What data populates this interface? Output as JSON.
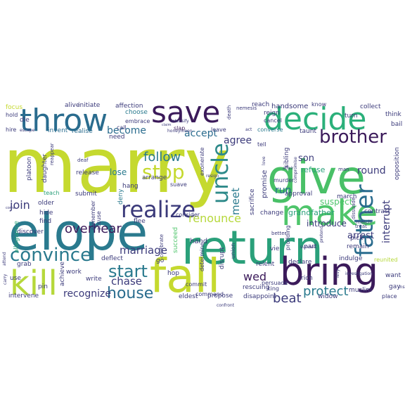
{
  "words": [
    {
      "text": "marry",
      "color": "#c5d92f"
    },
    {
      "text": "elope",
      "color": "#2a7a8e"
    },
    {
      "text": "return",
      "color": "#2aa07a"
    },
    {
      "text": "give",
      "color": "#49c067"
    },
    {
      "text": "fall",
      "color": "#c5d92f"
    },
    {
      "text": "bring",
      "color": "#3b1a5a"
    },
    {
      "text": "kill",
      "color": "#b6d83b"
    },
    {
      "text": "make",
      "color": "#4fc56b"
    },
    {
      "text": "decide",
      "color": "#2bb07a"
    },
    {
      "text": "throw",
      "color": "#2a6c8e"
    },
    {
      "text": "save",
      "color": "#3b1a5a"
    },
    {
      "text": "convince",
      "color": "#2a7a8e"
    },
    {
      "text": "realize",
      "color": "#3b3a7a"
    },
    {
      "text": "brother",
      "color": "#3b1a5a"
    },
    {
      "text": "uncle",
      "color": "#2e8a8a"
    },
    {
      "text": "father",
      "color": "#2a6c8e"
    },
    {
      "text": "stop",
      "color": "#c5d92f"
    },
    {
      "text": "start",
      "color": "#2a7a8e"
    },
    {
      "text": "house",
      "color": "#2a6c8e"
    },
    {
      "text": "overhear",
      "color": "#3b1a5a"
    },
    {
      "text": "follow",
      "color": "#2a7a8e"
    },
    {
      "text": "marriage",
      "color": "#3b3a7a"
    },
    {
      "text": "protect",
      "color": "#2a7a8e"
    },
    {
      "text": "join",
      "color": "#3b3a7a"
    },
    {
      "text": "accept",
      "color": "#2a6c8e"
    },
    {
      "text": "become",
      "color": "#2a6c8e"
    },
    {
      "text": "agree",
      "color": "#3b3a7a"
    },
    {
      "text": "renounce",
      "color": "#b6d83b"
    },
    {
      "text": "meet",
      "color": "#2a7a8e"
    },
    {
      "text": "run",
      "color": "#2a6c8e"
    },
    {
      "text": "beat",
      "color": "#3b3a7a"
    },
    {
      "text": "chase",
      "color": "#3b3a7a"
    },
    {
      "text": "wed",
      "color": "#3b1a5a"
    },
    {
      "text": "son",
      "color": "#3b3a7a"
    },
    {
      "text": "round",
      "color": "#3b3a7a"
    },
    {
      "text": "interrupt",
      "color": "#3b3a7a"
    },
    {
      "text": "recognize",
      "color": "#3b3a7a"
    },
    {
      "text": "arrest",
      "color": "#3b3a7a"
    },
    {
      "text": "lose",
      "color": "#2a7a8e"
    },
    {
      "text": "introduce",
      "color": "#3b3a7a"
    },
    {
      "text": "grandfather",
      "color": "#2aa07a"
    },
    {
      "text": "suspect",
      "color": "#4fc56b"
    },
    {
      "text": "refuse",
      "color": "#2aa07a"
    },
    {
      "text": "sacrifice",
      "color": "#3b3a7a"
    },
    {
      "text": "promise",
      "color": "#3b3a7a"
    },
    {
      "text": "hand",
      "color": "#3b3a7a"
    },
    {
      "text": "handsome",
      "color": "#3b3a7a"
    },
    {
      "text": "reach",
      "color": "#3b3a7a"
    },
    {
      "text": "choose",
      "color": "#2a7a8e"
    },
    {
      "text": "affection",
      "color": "#3b3a7a"
    },
    {
      "text": "alive",
      "color": "#3b3a7a"
    },
    {
      "text": "initiate",
      "color": "#3b3a7a"
    },
    {
      "text": "focus",
      "color": "#c5d92f"
    },
    {
      "text": "collect",
      "color": "#3b3a7a"
    },
    {
      "text": "think",
      "color": "#3b3a7a"
    },
    {
      "text": "bail",
      "color": "#3b3a7a"
    },
    {
      "text": "turn",
      "color": "#3b3a7a"
    },
    {
      "text": "know",
      "color": "#3b3a7a"
    },
    {
      "text": "hold",
      "color": "#3b3a7a"
    },
    {
      "text": "hire",
      "color": "#3b3a7a"
    },
    {
      "text": "escape",
      "color": "#3b3a7a"
    },
    {
      "text": "invent",
      "color": "#2a6c8e"
    },
    {
      "text": "realise",
      "color": "#2a6c8e"
    },
    {
      "text": "embrace",
      "color": "#3b3a7a"
    },
    {
      "text": "call",
      "color": "#3b3a7a"
    },
    {
      "text": "slap",
      "color": "#3b1a5a"
    },
    {
      "text": "leave",
      "color": "#3b3a7a"
    },
    {
      "text": "reign",
      "color": "#3b3a7a"
    },
    {
      "text": "cancel",
      "color": "#3b3a7a"
    },
    {
      "text": "taunt",
      "color": "#3b3a7a"
    },
    {
      "text": "converse",
      "color": "#2a7a8e"
    },
    {
      "text": "tell",
      "color": "#3b3a7a"
    },
    {
      "text": "release",
      "color": "#3b3a7a"
    },
    {
      "text": "hang",
      "color": "#3b3a7a"
    },
    {
      "text": "arrange",
      "color": "#3b3a7a"
    },
    {
      "text": "platoon",
      "color": "#3b3a7a"
    },
    {
      "text": "daughter",
      "color": "#3b3a7a"
    },
    {
      "text": "teach",
      "color": "#2aa07a"
    },
    {
      "text": "submit",
      "color": "#3b3a7a"
    },
    {
      "text": "deny",
      "color": "#2a7a8e"
    },
    {
      "text": "suave",
      "color": "#3b3a7a"
    },
    {
      "text": "exonerate",
      "color": "#3b3a7a"
    },
    {
      "text": "murder",
      "color": "#3b3a7a"
    },
    {
      "text": "approval",
      "color": "#3b3a7a"
    },
    {
      "text": "march",
      "color": "#3b3a7a"
    },
    {
      "text": "contrast",
      "color": "#3b3a7a"
    },
    {
      "text": "opposition",
      "color": "#3b3a7a"
    },
    {
      "text": "older",
      "color": "#3b3a7a"
    },
    {
      "text": "hide",
      "color": "#3b3a7a"
    },
    {
      "text": "find",
      "color": "#3b3a7a"
    },
    {
      "text": "discover",
      "color": "#3b3a7a"
    },
    {
      "text": "flee",
      "color": "#3b3a7a"
    },
    {
      "text": "consider",
      "color": "#3b3a7a"
    },
    {
      "text": "change",
      "color": "#3b3a7a"
    },
    {
      "text": "allegiance",
      "color": "#2aa07a"
    },
    {
      "text": "remember",
      "color": "#3b3a7a"
    },
    {
      "text": "celebrate",
      "color": "#3b3a7a"
    },
    {
      "text": "succeed",
      "color": "#4fc56b"
    },
    {
      "text": "commit",
      "color": "#3b3a7a"
    },
    {
      "text": "command",
      "color": "#3b3a7a"
    },
    {
      "text": "union",
      "color": "#3b3a7a"
    },
    {
      "text": "vie",
      "color": "#3b3a7a"
    },
    {
      "text": "prodding",
      "color": "#3b3a7a"
    },
    {
      "text": "remain",
      "color": "#3b3a7a"
    },
    {
      "text": "reunited",
      "color": "#b6d83b"
    },
    {
      "text": "pick",
      "color": "#3b3a7a"
    },
    {
      "text": "treat",
      "color": "#3b3a7a"
    },
    {
      "text": "match",
      "color": "#3b3a7a"
    },
    {
      "text": "grab",
      "color": "#3b3a7a"
    },
    {
      "text": "work",
      "color": "#3b3a7a"
    },
    {
      "text": "deflect",
      "color": "#3b3a7a"
    },
    {
      "text": "go",
      "color": "#3b3a7a"
    },
    {
      "text": "hop",
      "color": "#3b3a7a"
    },
    {
      "text": "determine",
      "color": "#3b3a7a"
    },
    {
      "text": "disrupt",
      "color": "#3b3a7a"
    },
    {
      "text": "relent",
      "color": "#3b3a7a"
    },
    {
      "text": "declare",
      "color": "#3b3a7a"
    },
    {
      "text": "rich",
      "color": "#3b3a7a"
    },
    {
      "text": "want",
      "color": "#3b3a7a"
    },
    {
      "text": "use",
      "color": "#3b3a7a"
    },
    {
      "text": "pin",
      "color": "#3b3a7a"
    },
    {
      "text": "achieve",
      "color": "#3b3a7a"
    },
    {
      "text": "write",
      "color": "#3b3a7a"
    },
    {
      "text": "rescuing",
      "color": "#3b3a7a"
    },
    {
      "text": "persuade",
      "color": "#3b3a7a"
    },
    {
      "text": "king",
      "color": "#3b3a7a"
    },
    {
      "text": "gay",
      "color": "#3b3a7a"
    },
    {
      "text": "muslim",
      "color": "#3b3a7a"
    },
    {
      "text": "intervene",
      "color": "#3b3a7a"
    },
    {
      "text": "eldest",
      "color": "#3b3a7a"
    },
    {
      "text": "propose",
      "color": "#3b3a7a"
    },
    {
      "text": "disappoint",
      "color": "#3b3a7a"
    },
    {
      "text": "widow",
      "color": "#3b3a7a"
    },
    {
      "text": "place",
      "color": "#3b3a7a"
    },
    {
      "text": "confront",
      "color": "#3b3a7a"
    },
    {
      "text": "indulge",
      "color": "#3b3a7a"
    },
    {
      "text": "part",
      "color": "#3b3a7a"
    },
    {
      "text": "need",
      "color": "#3b3a7a"
    },
    {
      "text": "sibling",
      "color": "#3b3a7a"
    },
    {
      "text": "nemesis",
      "color": "#3b3a7a"
    },
    {
      "text": "death",
      "color": "#3b3a7a"
    },
    {
      "text": "honeymoon",
      "color": "#3b3a7a"
    },
    {
      "text": "die",
      "color": "#3b3a7a"
    },
    {
      "text": "deaf",
      "color": "#3b3a7a"
    },
    {
      "text": "accuse",
      "color": "#3b3a7a"
    },
    {
      "text": "survive",
      "color": "#3b3a7a"
    },
    {
      "text": "dissuade",
      "color": "#3b3a7a"
    },
    {
      "text": "insult",
      "color": "#3b3a7a"
    },
    {
      "text": "investigation",
      "color": "#3b3a7a"
    },
    {
      "text": "levy",
      "color": "#3b3a7a"
    },
    {
      "text": "intensify",
      "color": "#3b3a7a"
    },
    {
      "text": "claim",
      "color": "#3b3a7a"
    },
    {
      "text": "compromise",
      "color": "#3b3a7a"
    },
    {
      "text": "love",
      "color": "#3b3a7a"
    },
    {
      "text": "act",
      "color": "#3b3a7a"
    },
    {
      "text": "man",
      "color": "#3b3a7a"
    },
    {
      "text": "affair",
      "color": "#3b3a7a"
    },
    {
      "text": "better",
      "color": "#3b3a7a"
    },
    {
      "text": "reappear",
      "color": "#3b3a7a"
    },
    {
      "text": "carry",
      "color": "#3b3a7a"
    },
    {
      "text": "attend",
      "color": "#3b3a7a"
    },
    {
      "text": "resign",
      "color": "#3b3a7a"
    },
    {
      "text": "pretend",
      "color": "#3b3a7a"
    },
    {
      "text": "come",
      "color": "#3b3a7a"
    }
  ]
}
